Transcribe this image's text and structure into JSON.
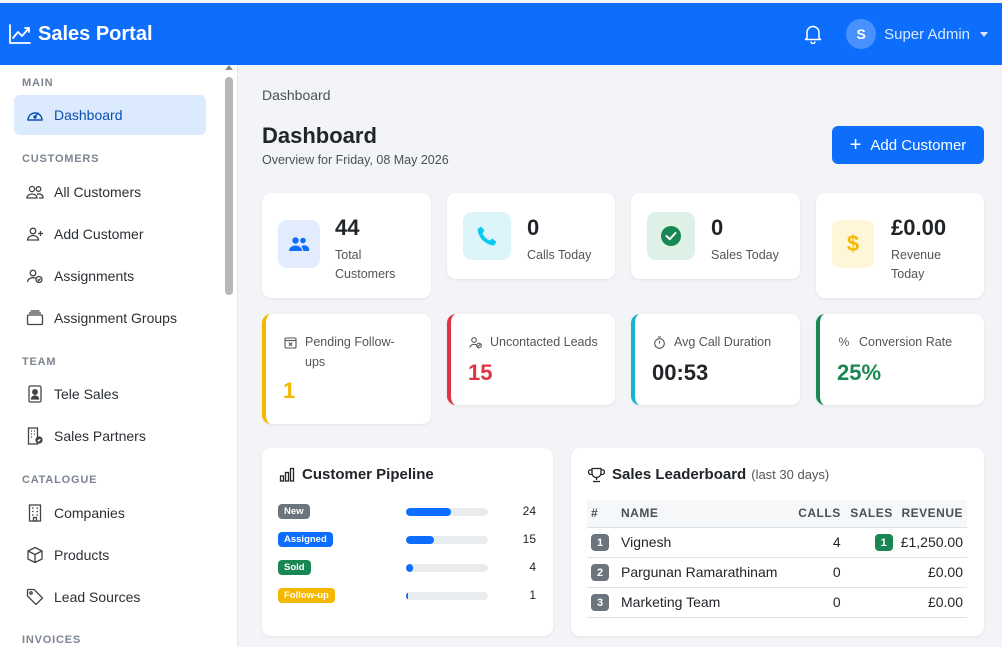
{
  "header": {
    "brand": "Sales Portal",
    "avatar_initial": "S",
    "username": "Super Admin"
  },
  "sidebar": {
    "sections": {
      "main": "MAIN",
      "customers": "CUSTOMERS",
      "team": "TEAM",
      "catalogue": "CATALOGUE",
      "invoices": "INVOICES"
    },
    "items": {
      "dashboard": "Dashboard",
      "all_customers": "All Customers",
      "add_customer": "Add Customer",
      "assignments": "Assignments",
      "assignment_groups": "Assignment Groups",
      "tele_sales": "Tele Sales",
      "sales_partners": "Sales Partners",
      "companies": "Companies",
      "products": "Products",
      "lead_sources": "Lead Sources"
    }
  },
  "main": {
    "breadcrumb": "Dashboard",
    "title": "Dashboard",
    "subtitle": "Overview for Friday, 08 May 2026",
    "add_button": "Add Customer"
  },
  "stats": [
    {
      "value": "44",
      "label": "Total Customers"
    },
    {
      "value": "0",
      "label": "Calls Today"
    },
    {
      "value": "0",
      "label": "Sales Today"
    },
    {
      "value": "£0.00",
      "label": "Revenue Today"
    }
  ],
  "metrics": [
    {
      "label": "Pending Follow-ups",
      "value": "1",
      "color": "#f5b800"
    },
    {
      "label": "Uncontacted Leads",
      "value": "15",
      "color": "#dc3545"
    },
    {
      "label": "Avg Call Duration",
      "value": "00:53",
      "color": "#1ab3cc"
    },
    {
      "label": "Conversion Rate",
      "value": "25%",
      "color": "#198754"
    }
  ],
  "pipeline": {
    "title": "Customer Pipeline",
    "rows": [
      {
        "stage": "New",
        "count": "24",
        "fraction": 0.545,
        "color": "#6c757d"
      },
      {
        "stage": "Assigned",
        "count": "15",
        "fraction": 0.341,
        "color": "#0d6efd"
      },
      {
        "stage": "Sold",
        "count": "4",
        "fraction": 0.091,
        "color": "#198754"
      },
      {
        "stage": "Follow-up",
        "count": "1",
        "fraction": 0.023,
        "color": "#f5b800"
      }
    ]
  },
  "leaderboard": {
    "title": "Sales Leaderboard",
    "period": "(last 30 days)",
    "columns": {
      "rank": "#",
      "name": "NAME",
      "calls": "CALLS",
      "sales": "SALES",
      "revenue": "REVENUE"
    },
    "rows": [
      {
        "rank": "1",
        "name": "Vignesh",
        "calls": "4",
        "sales": "1",
        "revenue": "£1,250.00"
      },
      {
        "rank": "2",
        "name": "Pargunan Ramarathinam",
        "calls": "0",
        "sales": "",
        "revenue": "£0.00"
      },
      {
        "rank": "3",
        "name": "Marketing Team",
        "calls": "0",
        "sales": "",
        "revenue": "£0.00"
      }
    ]
  }
}
